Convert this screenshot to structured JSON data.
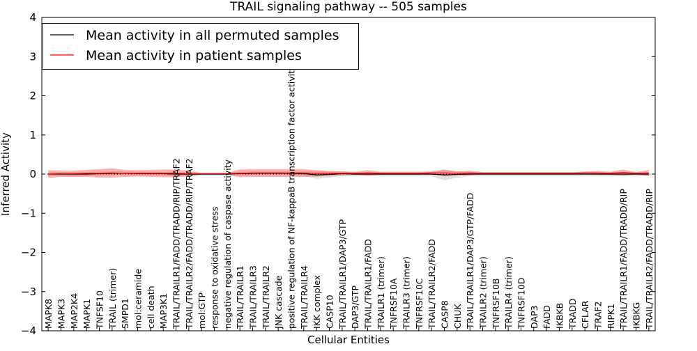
{
  "chart_data": {
    "type": "line",
    "title": "TRAIL signaling pathway -- 505 samples",
    "xlabel": "Cellular Entities",
    "ylabel": "Inferred Activity",
    "ylim": [
      -4,
      4
    ],
    "yticks": [
      "−4",
      "−3",
      "−2",
      "−1",
      "0",
      "1",
      "2",
      "3",
      "4"
    ],
    "legend_position": "top-left",
    "categories": [
      "MAPK8",
      "MAPK3",
      "MAP2K4",
      "MAPK1",
      "TNFSF10",
      "TRAIL (trimer)",
      "SMPD1",
      "mol:ceramide",
      "cell death",
      "MAP3K1",
      "TRAIL/TRAILR1/FADD/TRADD/RIP/TRAF2",
      "TRAIL/TRAILR2/FADD/TRADD/RIP/TRAF2",
      "mol:GTP",
      "response to oxidative stress",
      "negative regulation of caspase activity",
      "TRAIL/TRAILR1",
      "TRAIL/TRAILR3",
      "TRAIL/TRAILR2",
      "JNK cascade",
      "positive regulation of NF-kappaB transcription factor activity",
      "TRAIL/TRAILR4",
      "IKK complex",
      "CASP10",
      "TRAIL/TRAILR1/DAP3/GTP",
      "DAP3/GTP",
      "TRAIL/TRAILR1/FADD",
      "TRAILR1 (trimer)",
      "TNFRSF10A",
      "TRAILR3 (trimer)",
      "TNFRSF10C",
      "TRAIL/TRAILR2/FADD",
      "CASP8",
      "CHUK",
      "TRAIL/TRAILR1/DAP3/GTP/FADD",
      "TRAILR2 (trimer)",
      "TNFRSF10B",
      "TRAILR4 (trimer)",
      "TNFRSF10D",
      "DAP3",
      "FADD",
      "IKBKB",
      "TRADD",
      "CFLAR",
      "TRAF2",
      "RIPK1",
      "TRAIL/TRAILR1/FADD/TRADD/RIP",
      "IKBKG",
      "TRAIL/TRAILR2/FADD/TRADD/RIP"
    ],
    "series": [
      {
        "name": "Mean activity in all permuted samples",
        "color": "#000000",
        "values": [
          0,
          0,
          0,
          0,
          0.01,
          0.02,
          0.02,
          0.01,
          0.01,
          0.01,
          0,
          0,
          0,
          0,
          0,
          0.01,
          0.02,
          0.02,
          0.02,
          0.02,
          0.01,
          -0.02,
          -0.01,
          0.01,
          0,
          0,
          0,
          0,
          0,
          0,
          0,
          -0.02,
          -0.01,
          0,
          0,
          0,
          0,
          0,
          0,
          0,
          0,
          0,
          0,
          0,
          0,
          0,
          0,
          0
        ],
        "std": [
          0.05,
          0.05,
          0.05,
          0.05,
          0.05,
          0.05,
          0.05,
          0.05,
          0.05,
          0.05,
          0.05,
          0.05,
          0.04,
          0.04,
          0.04,
          0.05,
          0.05,
          0.05,
          0.05,
          0.05,
          0.06,
          0.1,
          0.08,
          0.06,
          0.05,
          0.05,
          0.05,
          0.05,
          0.05,
          0.05,
          0.06,
          0.14,
          0.08,
          0.05,
          0.05,
          0.05,
          0.05,
          0.05,
          0.05,
          0.05,
          0.05,
          0.05,
          0.05,
          0.05,
          0.05,
          0.05,
          0.05,
          0.05
        ]
      },
      {
        "name": "Mean activity in patient samples",
        "color": "#ff0000",
        "values": [
          0,
          0.01,
          0.01,
          0.02,
          0.02,
          0.03,
          0.02,
          0.02,
          0.02,
          0.02,
          0.02,
          0.01,
          0.01,
          0.01,
          0.01,
          0.02,
          0.03,
          0.03,
          0.03,
          0.03,
          0.03,
          0.02,
          0.02,
          0.02,
          0.02,
          0.03,
          0.02,
          0.02,
          0.02,
          0.02,
          0.03,
          0.03,
          0.02,
          0.03,
          0.02,
          0.02,
          0.02,
          0.02,
          0.02,
          0.02,
          0.02,
          0.02,
          0.03,
          0.03,
          0.02,
          0.04,
          0.02,
          0.03
        ],
        "std": [
          0.1,
          0.08,
          0.08,
          0.09,
          0.11,
          0.12,
          0.09,
          0.08,
          0.09,
          0.1,
          0.1,
          0.07,
          0.02,
          0.02,
          0.02,
          0.1,
          0.1,
          0.1,
          0.1,
          0.1,
          0.1,
          0.08,
          0.06,
          0.05,
          0.04,
          0.07,
          0.04,
          0.04,
          0.04,
          0.04,
          0.04,
          0.08,
          0.05,
          0.06,
          0.03,
          0.03,
          0.03,
          0.03,
          0.03,
          0.03,
          0.03,
          0.03,
          0.04,
          0.05,
          0.04,
          0.08,
          0.03,
          0.08
        ]
      }
    ]
  }
}
